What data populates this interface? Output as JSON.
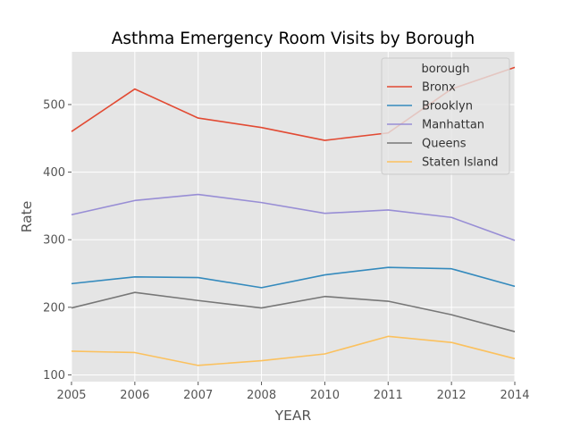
{
  "chart_data": {
    "type": "line",
    "title": "Asthma Emergency Room Visits by Borough",
    "xlabel": "YEAR",
    "ylabel": "Rate",
    "categories": [
      "2005",
      "2006",
      "2007",
      "2008",
      "2010",
      "2011",
      "2012",
      "2014"
    ],
    "ylim": [
      90,
      578
    ],
    "yticks": [
      100,
      200,
      300,
      400,
      500
    ],
    "grid": true,
    "legend": {
      "title": "borough",
      "placement": "top-right"
    },
    "series": [
      {
        "name": "Bronx",
        "color": "#E24A33",
        "values": [
          460,
          523,
          480,
          466,
          447,
          458,
          523,
          555
        ]
      },
      {
        "name": "Brooklyn",
        "color": "#348ABD",
        "values": [
          235,
          245,
          244,
          229,
          248,
          259,
          257,
          231
        ]
      },
      {
        "name": "Manhattan",
        "color": "#988ED5",
        "values": [
          337,
          358,
          367,
          355,
          339,
          344,
          333,
          299
        ]
      },
      {
        "name": "Queens",
        "color": "#777777",
        "values": [
          199,
          222,
          210,
          199,
          216,
          209,
          189,
          164
        ]
      },
      {
        "name": "Staten Island",
        "color": "#FBC15E",
        "values": [
          135,
          133,
          114,
          121,
          131,
          157,
          148,
          124
        ]
      }
    ]
  }
}
